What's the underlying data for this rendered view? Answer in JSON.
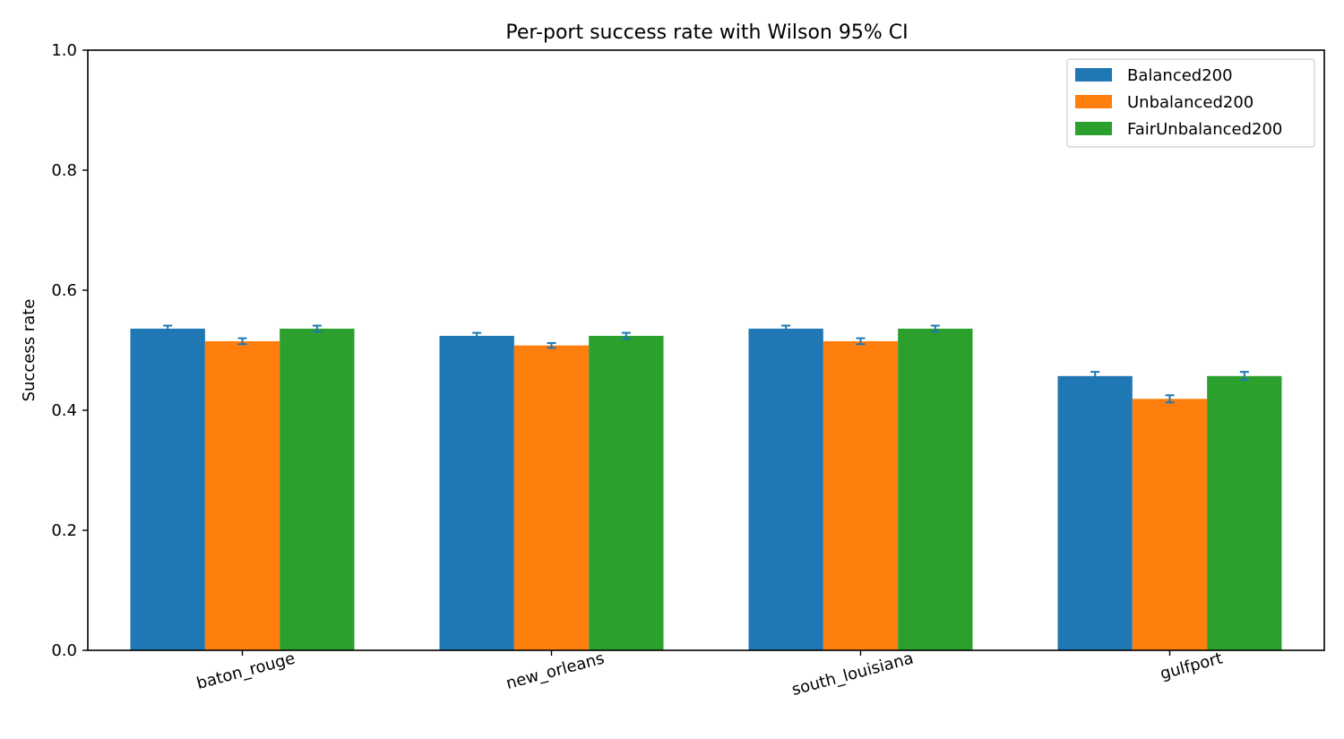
{
  "chart_data": {
    "type": "bar",
    "title": "Per-port success rate with Wilson 95% CI",
    "xlabel": "",
    "ylabel": "Success rate",
    "ylim": [
      0,
      1
    ],
    "yticks": [
      "0.0",
      "0.2",
      "0.4",
      "0.6",
      "0.8",
      "1.0"
    ],
    "categories": [
      "baton_rouge",
      "new_orleans",
      "south_louisiana",
      "gulfport"
    ],
    "series": [
      {
        "name": "Balanced200",
        "color": "#1f77b4",
        "values": [
          0.536,
          0.524,
          0.536,
          0.457
        ],
        "ci": [
          [
            0.531,
            0.541
          ],
          [
            0.519,
            0.529
          ],
          [
            0.531,
            0.541
          ],
          [
            0.451,
            0.464
          ]
        ]
      },
      {
        "name": "Unbalanced200",
        "color": "#ff7f0e",
        "values": [
          0.515,
          0.508,
          0.515,
          0.419
        ],
        "ci": [
          [
            0.51,
            0.52
          ],
          [
            0.504,
            0.512
          ],
          [
            0.51,
            0.52
          ],
          [
            0.413,
            0.425
          ]
        ]
      },
      {
        "name": "FairUnbalanced200",
        "color": "#2ca02c",
        "values": [
          0.536,
          0.524,
          0.536,
          0.457
        ],
        "ci": [
          [
            0.531,
            0.541
          ],
          [
            0.519,
            0.529
          ],
          [
            0.531,
            0.541
          ],
          [
            0.451,
            0.464
          ]
        ]
      }
    ],
    "errorbar_color": "#1f77b4",
    "legend_position": "top-right",
    "grid": false
  }
}
